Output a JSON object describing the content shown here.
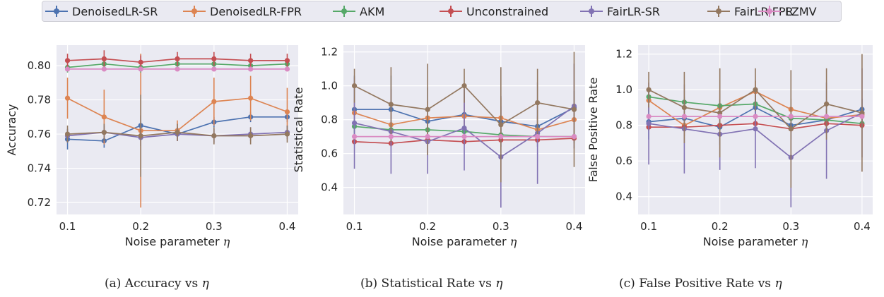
{
  "legend": [
    {
      "label": "DenoisedLR-SR",
      "color": "#4c72b0"
    },
    {
      "label": "DenoisedLR-FPR",
      "color": "#dd8452"
    },
    {
      "label": "AKM",
      "color": "#55a868"
    },
    {
      "label": "Unconstrained",
      "color": "#c44e52"
    },
    {
      "label": "FairLR-SR",
      "color": "#8172b3"
    },
    {
      "label": "FairLR-FPR",
      "color": "#937860"
    },
    {
      "label": "LZMV",
      "color": "#da8bc3"
    }
  ],
  "captions": [
    {
      "text": "(a) Accuracy vs ",
      "symbol": "η"
    },
    {
      "text": "(b) Statistical Rate vs ",
      "symbol": "η"
    },
    {
      "text": "(c) False Positive Rate vs ",
      "symbol": "η"
    }
  ],
  "chart_data": [
    {
      "type": "line",
      "xlabel": "Noise parameter η",
      "ylabel": "Accuracy",
      "x": [
        0.1,
        0.15,
        0.2,
        0.25,
        0.3,
        0.35,
        0.4
      ],
      "xticks": [
        0.1,
        0.2,
        0.3,
        0.4
      ],
      "xlim": [
        0.085,
        0.415
      ],
      "yticks": [
        0.72,
        0.74,
        0.76,
        0.78,
        0.8
      ],
      "ylim": [
        0.713,
        0.812
      ],
      "grid": true,
      "series": [
        {
          "name": "DenoisedLR-SR",
          "values": [
            0.757,
            0.756,
            0.765,
            0.76,
            0.767,
            0.77,
            0.77
          ],
          "err": [
            0.006,
            0.004,
            0.006,
            0.004,
            0.003,
            0.003,
            0.003
          ]
        },
        {
          "name": "DenoisedLR-FPR",
          "values": [
            0.781,
            0.77,
            0.762,
            0.762,
            0.779,
            0.781,
            0.773
          ],
          "err": [
            0.012,
            0.016,
            0.045,
            0.006,
            0.014,
            0.013,
            0.014
          ]
        },
        {
          "name": "AKM",
          "values": [
            0.799,
            0.801,
            0.799,
            0.801,
            0.801,
            0.8,
            0.801
          ],
          "err": [
            0.003,
            0.003,
            0.003,
            0.003,
            0.003,
            0.003,
            0.003
          ]
        },
        {
          "name": "Unconstrained",
          "values": [
            0.803,
            0.804,
            0.802,
            0.804,
            0.804,
            0.803,
            0.803
          ],
          "err": [
            0.004,
            0.005,
            0.004,
            0.004,
            0.004,
            0.004,
            0.004
          ]
        },
        {
          "name": "FairLR-SR",
          "values": [
            0.759,
            0.761,
            0.758,
            0.76,
            0.759,
            0.76,
            0.761
          ],
          "err": [
            0.004,
            0.004,
            0.005,
            0.004,
            0.004,
            0.004,
            0.004
          ]
        },
        {
          "name": "FairLR-FPR",
          "values": [
            0.76,
            0.761,
            0.759,
            0.761,
            0.759,
            0.759,
            0.76
          ],
          "err": [
            0.005,
            0.005,
            0.024,
            0.005,
            0.005,
            0.005,
            0.005
          ]
        },
        {
          "name": "LZMV",
          "values": [
            0.798,
            0.798,
            0.798,
            0.798,
            0.798,
            0.798,
            0.798
          ],
          "err": [
            0.001,
            0.001,
            0.001,
            0.001,
            0.001,
            0.001,
            0.001
          ]
        }
      ]
    },
    {
      "type": "line",
      "xlabel": "Noise parameter η",
      "ylabel": "Statistical Rate",
      "x": [
        0.1,
        0.15,
        0.2,
        0.25,
        0.3,
        0.35,
        0.4
      ],
      "xticks": [
        0.1,
        0.2,
        0.3,
        0.4
      ],
      "xlim": [
        0.085,
        0.415
      ],
      "yticks": [
        0.4,
        0.6,
        0.8,
        1.0,
        1.2
      ],
      "ylim": [
        0.24,
        1.24
      ],
      "grid": true,
      "series": [
        {
          "name": "DenoisedLR-SR",
          "values": [
            0.86,
            0.86,
            0.79,
            0.83,
            0.79,
            0.76,
            0.87
          ],
          "err": [
            0.2,
            0.2,
            0.2,
            0.15,
            0.15,
            0.12,
            0.1
          ]
        },
        {
          "name": "DenoisedLR-FPR",
          "values": [
            0.84,
            0.77,
            0.81,
            0.82,
            0.81,
            0.74,
            0.8
          ],
          "err": [
            0.08,
            0.08,
            0.1,
            0.1,
            0.12,
            0.08,
            0.06
          ]
        },
        {
          "name": "AKM",
          "values": [
            0.76,
            0.74,
            0.74,
            0.73,
            0.71,
            0.7,
            0.7
          ],
          "err": [
            0.04,
            0.04,
            0.04,
            0.04,
            0.04,
            0.04,
            0.04
          ]
        },
        {
          "name": "Unconstrained",
          "values": [
            0.67,
            0.66,
            0.68,
            0.67,
            0.68,
            0.68,
            0.69
          ],
          "err": [
            0.02,
            0.02,
            0.02,
            0.02,
            0.02,
            0.02,
            0.02
          ]
        },
        {
          "name": "FairLR-SR",
          "values": [
            0.78,
            0.73,
            0.67,
            0.75,
            0.58,
            0.72,
            0.88
          ],
          "err": [
            0.27,
            0.25,
            0.19,
            0.25,
            0.3,
            0.3,
            0.25
          ]
        },
        {
          "name": "FairLR-FPR",
          "values": [
            1.0,
            0.89,
            0.86,
            1.0,
            0.77,
            0.9,
            0.86
          ],
          "err": [
            0.1,
            0.22,
            0.27,
            0.1,
            0.34,
            0.2,
            0.34
          ]
        },
        {
          "name": "LZMV",
          "values": [
            0.7,
            0.7,
            0.7,
            0.7,
            0.7,
            0.7,
            0.7
          ],
          "err": [
            0.01,
            0.01,
            0.01,
            0.01,
            0.01,
            0.01,
            0.01
          ]
        }
      ]
    },
    {
      "type": "line",
      "xlabel": "Noise parameter η",
      "ylabel": "False Positive Rate",
      "x": [
        0.1,
        0.15,
        0.2,
        0.25,
        0.3,
        0.35,
        0.4
      ],
      "xticks": [
        0.1,
        0.2,
        0.3,
        0.4
      ],
      "xlim": [
        0.085,
        0.415
      ],
      "yticks": [
        0.4,
        0.6,
        0.8,
        1.0,
        1.2
      ],
      "ylim": [
        0.3,
        1.25
      ],
      "grid": true,
      "series": [
        {
          "name": "DenoisedLR-SR",
          "values": [
            0.82,
            0.84,
            0.79,
            0.9,
            0.8,
            0.83,
            0.89
          ],
          "err": [
            0.1,
            0.08,
            0.1,
            0.08,
            0.08,
            0.06,
            0.06
          ]
        },
        {
          "name": "DenoisedLR-FPR",
          "values": [
            0.94,
            0.8,
            0.9,
            0.99,
            0.89,
            0.84,
            0.86
          ],
          "err": [
            0.06,
            0.06,
            0.1,
            0.06,
            0.06,
            0.05,
            0.05
          ]
        },
        {
          "name": "AKM",
          "values": [
            0.96,
            0.93,
            0.91,
            0.92,
            0.84,
            0.83,
            0.81
          ],
          "err": [
            0.03,
            0.03,
            0.03,
            0.03,
            0.03,
            0.03,
            0.03
          ]
        },
        {
          "name": "Unconstrained",
          "values": [
            0.79,
            0.79,
            0.8,
            0.81,
            0.78,
            0.81,
            0.8
          ],
          "err": [
            0.02,
            0.02,
            0.02,
            0.02,
            0.02,
            0.02,
            0.02
          ]
        },
        {
          "name": "FairLR-SR",
          "values": [
            0.81,
            0.78,
            0.75,
            0.78,
            0.62,
            0.77,
            0.87
          ],
          "err": [
            0.23,
            0.25,
            0.2,
            0.22,
            0.28,
            0.27,
            0.25
          ]
        },
        {
          "name": "FairLR-FPR",
          "values": [
            1.0,
            0.9,
            0.87,
            1.0,
            0.78,
            0.92,
            0.87
          ],
          "err": [
            0.1,
            0.2,
            0.25,
            0.12,
            0.33,
            0.2,
            0.33
          ]
        },
        {
          "name": "LZMV",
          "values": [
            0.85,
            0.85,
            0.85,
            0.85,
            0.85,
            0.85,
            0.85
          ],
          "err": [
            0.01,
            0.01,
            0.01,
            0.01,
            0.01,
            0.01,
            0.01
          ]
        }
      ]
    }
  ]
}
